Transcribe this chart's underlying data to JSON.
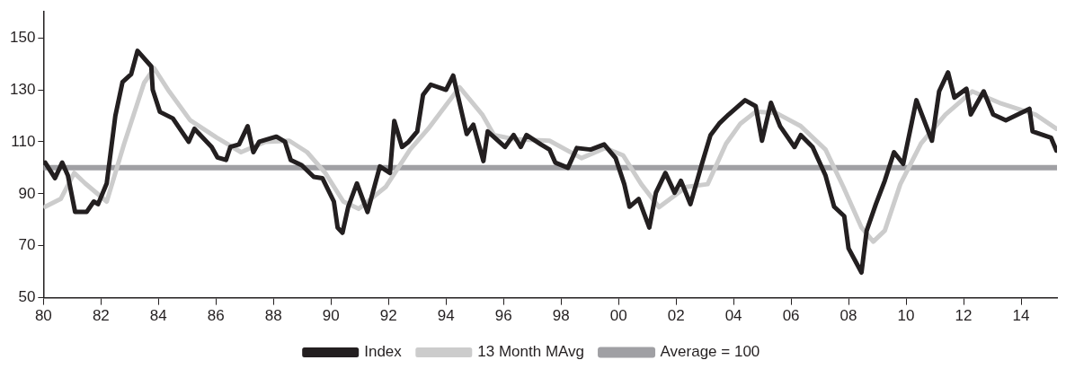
{
  "chart_data": {
    "type": "line",
    "xlim": [
      1980,
      2015.25
    ],
    "ylim": [
      50,
      160
    ],
    "xticks": [
      {
        "value": 1980,
        "label": "80"
      },
      {
        "value": 1982,
        "label": "82"
      },
      {
        "value": 1984,
        "label": "84"
      },
      {
        "value": 1986,
        "label": "86"
      },
      {
        "value": 1988,
        "label": "88"
      },
      {
        "value": 1990,
        "label": "90"
      },
      {
        "value": 1992,
        "label": "92"
      },
      {
        "value": 1994,
        "label": "94"
      },
      {
        "value": 1996,
        "label": "96"
      },
      {
        "value": 1998,
        "label": "98"
      },
      {
        "value": 2000,
        "label": "00"
      },
      {
        "value": 2002,
        "label": "02"
      },
      {
        "value": 2004,
        "label": "04"
      },
      {
        "value": 2006,
        "label": "06"
      },
      {
        "value": 2008,
        "label": "08"
      },
      {
        "value": 2010,
        "label": "10"
      },
      {
        "value": 2012,
        "label": "12"
      },
      {
        "value": 2014,
        "label": "14"
      }
    ],
    "yticks": [
      50,
      70,
      90,
      110,
      130,
      150
    ],
    "grid": false,
    "legend": "bottom",
    "marker": "none",
    "line_style": "solid",
    "series": [
      {
        "name": "Index",
        "color": "#231f20",
        "x": [
          1980.06,
          1980.4,
          1980.65,
          1980.85,
          1981.1,
          1981.5,
          1981.75,
          1981.9,
          1982.2,
          1982.5,
          1982.75,
          1983.05,
          1983.27,
          1983.75,
          1983.8,
          1984.05,
          1984.5,
          1985.05,
          1985.25,
          1985.85,
          1986.05,
          1986.35,
          1986.5,
          1986.8,
          1987.1,
          1987.3,
          1987.5,
          1988.1,
          1988.4,
          1988.6,
          1988.98,
          1989.4,
          1989.7,
          1990.1,
          1990.23,
          1990.4,
          1990.6,
          1990.9,
          1991.27,
          1991.7,
          1992.05,
          1992.2,
          1992.47,
          1992.7,
          1993,
          1993.2,
          1993.47,
          1994,
          1994.25,
          1994.72,
          1994.95,
          1995.3,
          1995.45,
          1996.05,
          1996.35,
          1996.6,
          1996.8,
          1997.3,
          1997.6,
          1997.8,
          1998.24,
          1998.55,
          1999.03,
          1999.5,
          1999.9,
          2000.2,
          2000.38,
          2000.7,
          2001.07,
          2001.3,
          2001.63,
          2001.95,
          2002.17,
          2002.5,
          2002.9,
          2003.2,
          2003.5,
          2003.83,
          2004.4,
          2004.77,
          2004.99,
          2005.3,
          2005.62,
          2006.12,
          2006.34,
          2006.75,
          2007.2,
          2007.5,
          2007.85,
          2008,
          2008.45,
          2008.63,
          2008.95,
          2009.26,
          2009.58,
          2009.9,
          2010.36,
          2010.9,
          2011.15,
          2011.46,
          2011.68,
          2012.1,
          2012.25,
          2012.7,
          2013.03,
          2013.47,
          2014.29,
          2014.4,
          2015.04,
          2015.23
        ],
        "values": [
          102,
          96,
          102,
          97,
          83,
          83,
          87,
          86,
          94,
          120,
          133,
          136,
          145,
          139,
          130,
          121.5,
          119,
          110,
          115,
          108,
          104,
          103,
          108,
          109,
          116,
          106,
          110,
          112,
          110,
          103,
          101,
          96.5,
          96,
          87,
          77,
          75,
          85,
          94,
          83,
          100.5,
          98,
          118,
          108,
          110,
          114,
          128,
          132,
          130,
          135.5,
          113,
          116.6,
          102.6,
          114,
          108,
          112.6,
          108,
          112.6,
          109,
          107,
          102,
          100,
          107.6,
          107,
          109,
          103.7,
          93.7,
          85,
          88,
          77,
          90.4,
          98,
          90.4,
          95,
          86,
          101.5,
          112.6,
          117,
          120.5,
          126,
          123.7,
          110.4,
          125,
          116,
          108,
          112.6,
          108,
          97,
          85,
          81.4,
          69,
          59.7,
          75.8,
          86,
          95,
          106,
          101.5,
          126,
          110.4,
          129.4,
          136.7,
          127,
          130.4,
          120.5,
          129.4,
          120.5,
          118.3,
          122.7,
          114,
          111.6,
          106.6
        ]
      },
      {
        "name": "13 Month MAvg",
        "color": "#cccccc",
        "x": [
          1980.06,
          1980.6,
          1981.07,
          1981.45,
          1982.2,
          1982.8,
          1983.5,
          1983.85,
          1984.37,
          1985.1,
          1986.03,
          1986.87,
          1987.72,
          1988.55,
          1989.17,
          1989.8,
          1990.43,
          1990.96,
          1991.9,
          1992.75,
          1993.38,
          1994.47,
          1995.26,
          1995.67,
          1996.36,
          1997.6,
          1998.71,
          1999.53,
          2000.16,
          2000.79,
          2001.41,
          2002.35,
          2003.1,
          2003.74,
          2004.24,
          2004.77,
          2005.5,
          2006.34,
          2007.2,
          2007.82,
          2008.45,
          2008.86,
          2009.26,
          2009.8,
          2010.52,
          2011.37,
          2012.3,
          2013.25,
          2014.5,
          2015.23
        ],
        "values": [
          85,
          88,
          98,
          94,
          87,
          109,
          132.7,
          138.3,
          129.4,
          118.3,
          111.6,
          106,
          110,
          110.4,
          106,
          98,
          87,
          84.2,
          92.6,
          107,
          115,
          131,
          120.5,
          112.6,
          111,
          110.4,
          103.7,
          107.6,
          104.8,
          93.7,
          84.8,
          92.6,
          93.7,
          109.3,
          117,
          121.6,
          121,
          116,
          107,
          92.6,
          77,
          71.6,
          75.8,
          93.7,
          109.3,
          120.5,
          129.4,
          125,
          120.5,
          115
        ]
      },
      {
        "name": "Average = 100",
        "color": "#a0a0a4",
        "x": [
          1980,
          2015.25
        ],
        "values": [
          100,
          100
        ]
      }
    ]
  }
}
